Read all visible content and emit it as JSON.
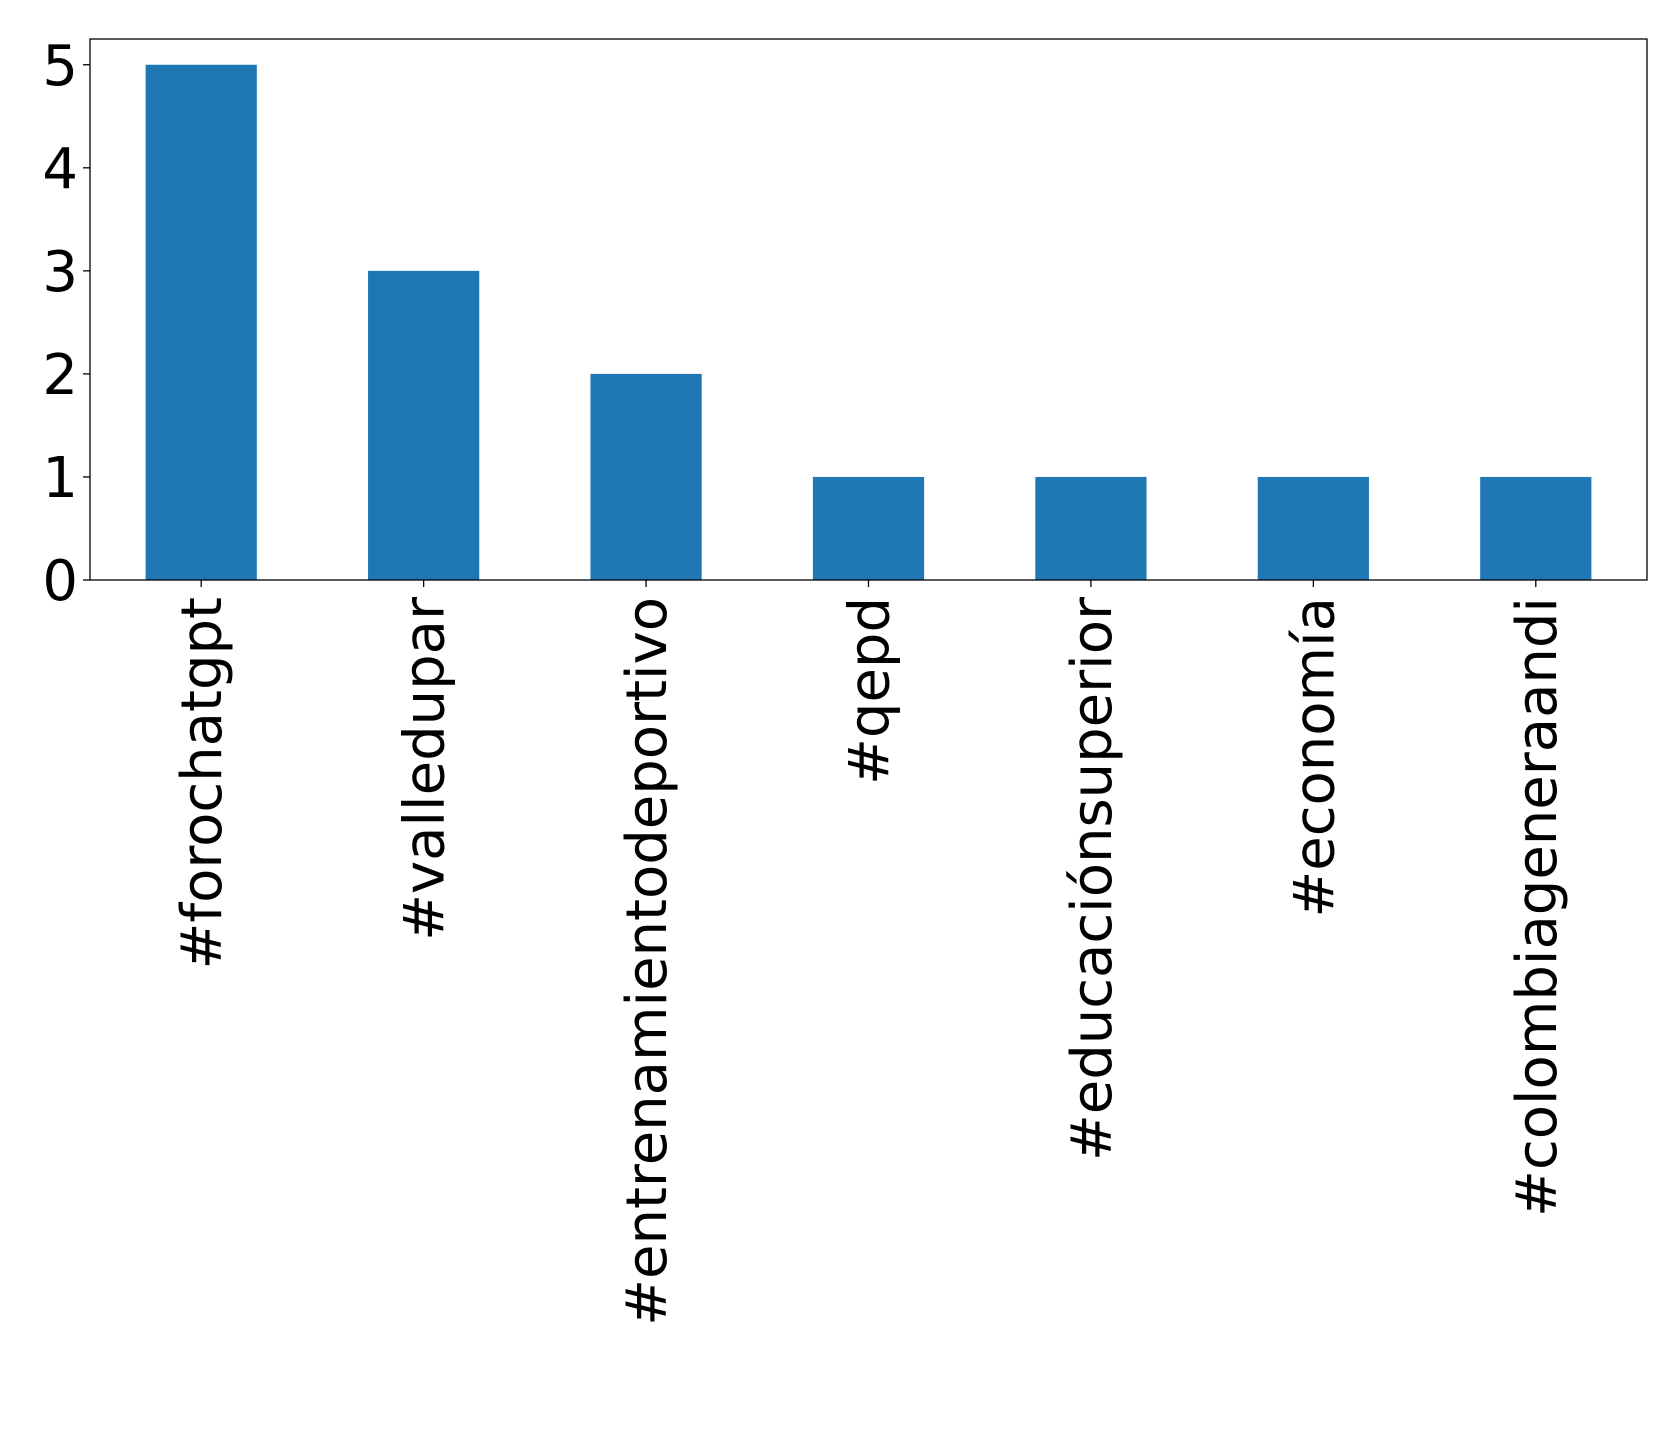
{
  "chart_data": {
    "type": "bar",
    "categories": [
      "#forochatgpt",
      "#valledupar",
      "#entrenamientodeportivo",
      "#qepd",
      "#educaciónsuperior",
      "#economía",
      "#colombiageneraandi"
    ],
    "values": [
      5,
      3,
      2,
      1,
      1,
      1,
      1
    ],
    "title": "",
    "xlabel": "",
    "ylabel": "",
    "ylim": [
      0,
      5.25
    ],
    "yticks": [
      "0",
      "1",
      "2",
      "3",
      "4",
      "5"
    ],
    "grid": false,
    "legend": "none",
    "bar_color": "#1f77b4"
  }
}
